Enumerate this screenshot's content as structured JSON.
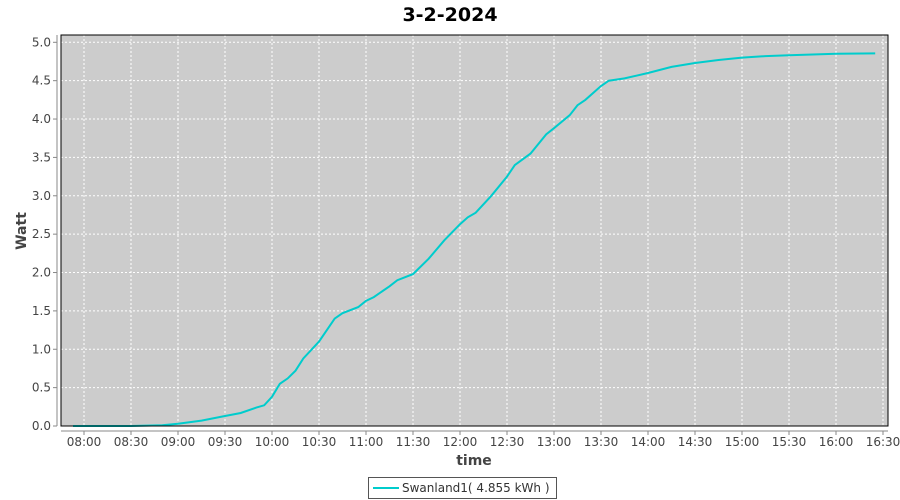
{
  "chart_data": {
    "type": "line",
    "title": "3-2-2024",
    "xlabel": "time",
    "ylabel": "Watt",
    "ylim": [
      0,
      5.0
    ],
    "yticks": [
      "0.0",
      "0.5",
      "1.0",
      "1.5",
      "2.0",
      "2.5",
      "3.0",
      "3.5",
      "4.0",
      "4.5",
      "5.0"
    ],
    "xticks": [
      "08:00",
      "08:30",
      "09:00",
      "09:30",
      "10:00",
      "10:30",
      "11:00",
      "11:30",
      "12:00",
      "12:30",
      "13:00",
      "13:30",
      "14:00",
      "14:30",
      "15:00",
      "15:30",
      "16:00",
      "16:30"
    ],
    "grid": true,
    "legend_position": "bottom",
    "colors": {
      "series": "#00cccc",
      "plot_bg": "#cccccc",
      "grid": "#ffffff"
    },
    "series": [
      {
        "name": "Swanland1( 4.855 kWh )",
        "x": [
          "07:53",
          "08:30",
          "08:50",
          "09:00",
          "09:15",
          "09:30",
          "09:40",
          "09:50",
          "09:55",
          "10:00",
          "10:05",
          "10:10",
          "10:15",
          "10:20",
          "10:30",
          "10:40",
          "10:45",
          "10:55",
          "11:00",
          "11:05",
          "11:15",
          "11:20",
          "11:30",
          "11:40",
          "11:50",
          "12:00",
          "12:05",
          "12:10",
          "12:20",
          "12:30",
          "12:35",
          "12:45",
          "12:55",
          "13:00",
          "13:10",
          "13:15",
          "13:20",
          "13:30",
          "13:35",
          "13:45",
          "14:00",
          "14:15",
          "14:30",
          "14:45",
          "15:00",
          "15:15",
          "15:30",
          "16:00",
          "16:25"
        ],
        "values": [
          0,
          0,
          0.01,
          0.03,
          0.07,
          0.13,
          0.17,
          0.24,
          0.27,
          0.38,
          0.55,
          0.62,
          0.72,
          0.88,
          1.1,
          1.4,
          1.47,
          1.55,
          1.63,
          1.68,
          1.82,
          1.9,
          1.98,
          2.18,
          2.42,
          2.63,
          2.72,
          2.78,
          3.0,
          3.25,
          3.4,
          3.55,
          3.8,
          3.88,
          4.05,
          4.18,
          4.25,
          4.43,
          4.5,
          4.53,
          4.6,
          4.68,
          4.73,
          4.77,
          4.8,
          4.82,
          4.83,
          4.85,
          4.855
        ]
      }
    ]
  }
}
